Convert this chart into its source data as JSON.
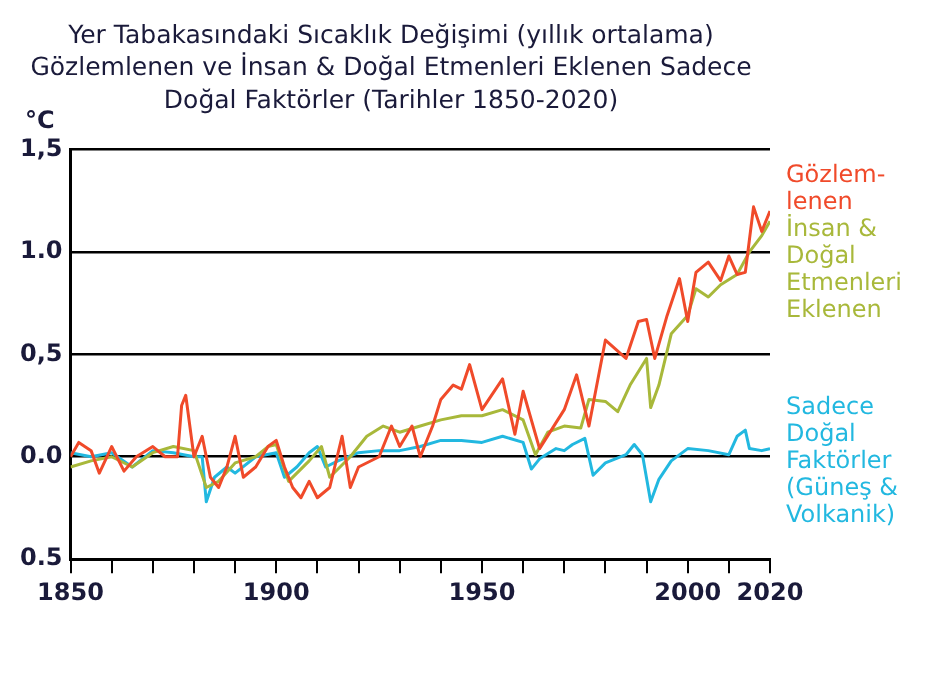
{
  "chart_data": {
    "type": "line",
    "title": "Yer Tabakasındaki Sıcaklık Değişimi (yıllık ortalama)\nGözlemlenen ve İnsan & Doğal Etmenleri Eklenen Sadece\nDoğal Faktörler (Tarihler 1850-2020)",
    "ylabel": "°C",
    "xlim": [
      1850,
      2020
    ],
    "xticks": [
      1850,
      {
        "value": 1860,
        "label": null
      },
      {
        "value": 1870,
        "label": null
      },
      {
        "value": 1880,
        "label": null
      },
      {
        "value": 1890,
        "label": null
      },
      1900,
      {
        "value": 1910,
        "label": null
      },
      {
        "value": 1920,
        "label": null
      },
      {
        "value": 1930,
        "label": null
      },
      {
        "value": 1940,
        "label": null
      },
      1950,
      {
        "value": 1960,
        "label": null
      },
      {
        "value": 1970,
        "label": null
      },
      {
        "value": 1980,
        "label": null
      },
      {
        "value": 1990,
        "label": null
      },
      2000,
      {
        "value": 2010,
        "label": null
      },
      2020
    ],
    "ylim": [
      -0.5,
      1.5
    ],
    "yticks": [
      {
        "value": -0.5,
        "label": "0.5"
      },
      {
        "value": 0,
        "label": "0.0"
      },
      {
        "value": 0.5,
        "label": "0,5"
      },
      {
        "value": 1,
        "label": "1.0"
      },
      {
        "value": 1.5,
        "label": "1,5"
      }
    ],
    "grid": "y",
    "legend": false,
    "marker": "none",
    "line_style": "solid",
    "series": [
      {
        "name": "Gözlem-\nlenen",
        "color": "#f04a2a",
        "x": [
          1850,
          1852,
          1855,
          1857,
          1860,
          1863,
          1866,
          1870,
          1873,
          1876,
          1877,
          1878,
          1880,
          1882,
          1884,
          1886,
          1888,
          1890,
          1892,
          1895,
          1898,
          1900,
          1902,
          1904,
          1906,
          1908,
          1910,
          1913,
          1916,
          1918,
          1920,
          1925,
          1928,
          1930,
          1933,
          1935,
          1938,
          1940,
          1943,
          1945,
          1947,
          1950,
          1955,
          1958,
          1960,
          1964,
          1970,
          1973,
          1976,
          1980,
          1985,
          1988,
          1990,
          1992,
          1995,
          1998,
          2000,
          2002,
          2005,
          2008,
          2010,
          2012,
          2014,
          2016,
          2018,
          2020
        ],
        "values": [
          0.0,
          0.07,
          0.03,
          -0.08,
          0.05,
          -0.07,
          0.0,
          0.05,
          0.0,
          0.0,
          0.25,
          0.3,
          0.0,
          0.1,
          -0.1,
          -0.15,
          -0.05,
          0.1,
          -0.1,
          -0.05,
          0.05,
          0.08,
          -0.05,
          -0.15,
          -0.2,
          -0.12,
          -0.2,
          -0.15,
          0.1,
          -0.15,
          -0.05,
          0.0,
          0.15,
          0.05,
          0.15,
          0.0,
          0.15,
          0.28,
          0.35,
          0.33,
          0.45,
          0.23,
          0.38,
          0.11,
          0.32,
          0.04,
          0.23,
          0.4,
          0.15,
          0.57,
          0.48,
          0.66,
          0.67,
          0.48,
          0.69,
          0.87,
          0.66,
          0.9,
          0.95,
          0.86,
          0.98,
          0.89,
          0.9,
          1.22,
          1.1,
          1.2
        ]
      },
      {
        "name": "İnsan &\nDoğal\nEtmenleri\nEklenen",
        "color": "#a8b83a",
        "x": [
          1850,
          1855,
          1860,
          1865,
          1870,
          1875,
          1880,
          1883,
          1886,
          1890,
          1895,
          1898,
          1900,
          1903,
          1908,
          1911,
          1913,
          1918,
          1922,
          1926,
          1930,
          1935,
          1940,
          1945,
          1950,
          1955,
          1960,
          1963,
          1966,
          1970,
          1974,
          1976,
          1980,
          1983,
          1986,
          1990,
          1991,
          1993,
          1996,
          2000,
          2002,
          2005,
          2008,
          2012,
          2015,
          2018,
          2020
        ],
        "values": [
          -0.05,
          -0.02,
          0.0,
          -0.05,
          0.02,
          0.05,
          0.03,
          -0.15,
          -0.12,
          -0.03,
          0.0,
          0.05,
          0.06,
          -0.12,
          -0.02,
          0.05,
          -0.1,
          0.0,
          0.1,
          0.15,
          0.12,
          0.15,
          0.18,
          0.2,
          0.2,
          0.23,
          0.18,
          0.01,
          0.12,
          0.15,
          0.14,
          0.28,
          0.27,
          0.22,
          0.35,
          0.48,
          0.24,
          0.35,
          0.6,
          0.69,
          0.82,
          0.78,
          0.84,
          0.89,
          1.0,
          1.08,
          1.15
        ]
      },
      {
        "name": "Sadece\nDoğal\nFaktörler\n(Güneş &\nVolkanik)",
        "color": "#22b8e0",
        "x": [
          1850,
          1855,
          1860,
          1865,
          1870,
          1875,
          1880,
          1882,
          1883,
          1885,
          1888,
          1890,
          1895,
          1900,
          1902,
          1905,
          1908,
          1910,
          1912,
          1915,
          1920,
          1925,
          1930,
          1935,
          1940,
          1945,
          1950,
          1955,
          1960,
          1962,
          1964,
          1968,
          1970,
          1972,
          1975,
          1977,
          1980,
          1985,
          1987,
          1989,
          1991,
          1993,
          1996,
          2000,
          2005,
          2010,
          2012,
          2014,
          2015,
          2018,
          2020
        ],
        "values": [
          0.02,
          0.0,
          0.02,
          -0.05,
          0.03,
          0.02,
          0.0,
          0.0,
          -0.22,
          -0.1,
          -0.05,
          -0.08,
          0.0,
          0.02,
          -0.1,
          -0.05,
          0.02,
          0.05,
          -0.05,
          -0.02,
          0.02,
          0.03,
          0.03,
          0.05,
          0.08,
          0.08,
          0.07,
          0.1,
          0.07,
          -0.06,
          -0.01,
          0.04,
          0.03,
          0.06,
          0.09,
          -0.09,
          -0.03,
          0.01,
          0.06,
          0.01,
          -0.22,
          -0.11,
          -0.02,
          0.04,
          0.03,
          0.01,
          0.1,
          0.13,
          0.04,
          0.03,
          0.04
        ]
      }
    ]
  }
}
